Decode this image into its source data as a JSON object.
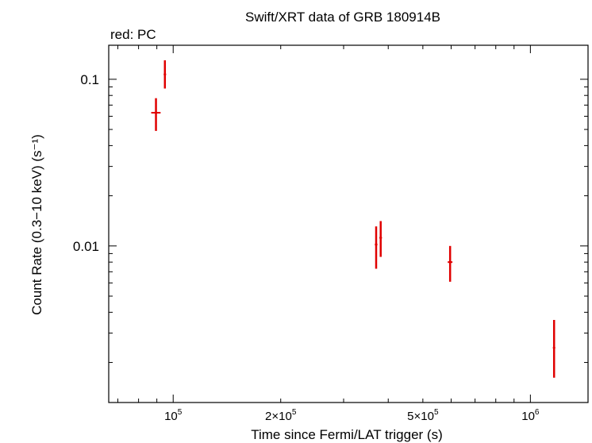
{
  "chart_data": {
    "type": "scatter",
    "title": "Swift/XRT data of GRB 180914B",
    "subtitle": "red: PC",
    "xlabel": "Time since Fermi/LAT trigger (s)",
    "ylabel": "Count Rate (0.3−10 keV) (s⁻¹)",
    "x_scale": "log",
    "y_scale": "log",
    "xlim": [
      66000,
      1450000
    ],
    "ylim": [
      0.00115,
      0.16
    ],
    "x_ticks": [
      {
        "value": 100000,
        "mantissa": "",
        "exp": "5"
      },
      {
        "value": 200000,
        "mantissa": "2×",
        "exp": "5"
      },
      {
        "value": 500000,
        "mantissa": "5×",
        "exp": "5"
      },
      {
        "value": 1000000,
        "mantissa": "",
        "exp": "6"
      }
    ],
    "y_ticks": [
      {
        "value": 0.1,
        "label": "0.1"
      },
      {
        "value": 0.01,
        "label": "0.01"
      }
    ],
    "grid": false,
    "series": [
      {
        "name": "PC",
        "color": "#e00000",
        "points": [
          {
            "x": 89500,
            "xerr": [
              2700,
              2700
            ],
            "y": 0.063,
            "yerr": [
              0.049,
              0.077
            ]
          },
          {
            "x": 94800,
            "xerr": [
              400,
              400
            ],
            "y": 0.107,
            "yerr": [
              0.088,
              0.13
            ]
          },
          {
            "x": 370000,
            "xerr": [
              3000,
              3000
            ],
            "y": 0.0102,
            "yerr": [
              0.0073,
              0.0131
            ]
          },
          {
            "x": 381000,
            "xerr": [
              3000,
              3000
            ],
            "y": 0.0112,
            "yerr": [
              0.0086,
              0.0141
            ]
          },
          {
            "x": 596000,
            "xerr": [
              9000,
              9000
            ],
            "y": 0.008,
            "yerr": [
              0.0061,
              0.01
            ]
          },
          {
            "x": 1165000,
            "xerr": [
              4000,
              4000
            ],
            "y": 0.00245,
            "yerr": [
              0.00162,
              0.0036
            ]
          }
        ]
      }
    ]
  }
}
